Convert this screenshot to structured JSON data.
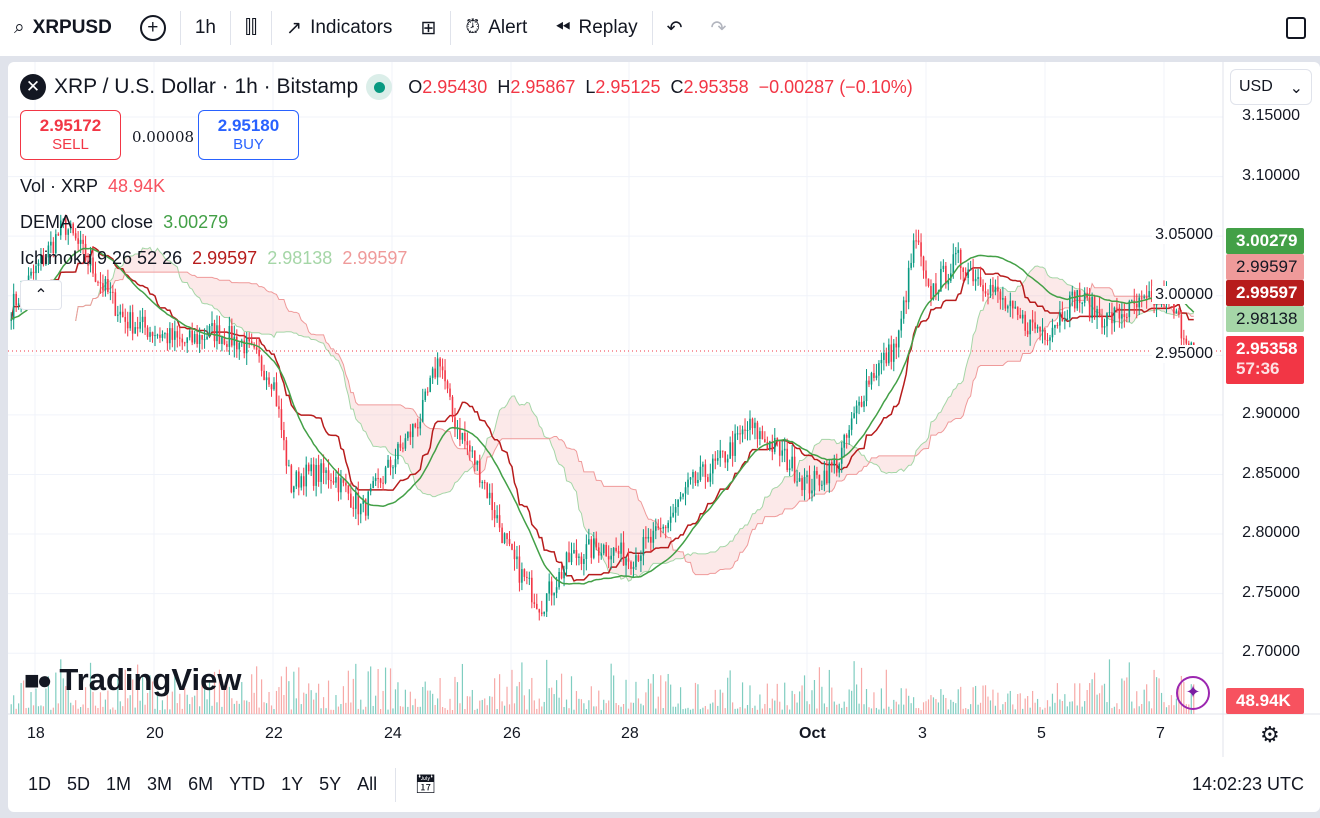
{
  "toolbar": {
    "symbol": "XRPUSD",
    "interval": "1h",
    "indicators": "Indicators",
    "alert": "Alert",
    "replay": "Replay"
  },
  "legend": {
    "title": "XRP / U.S. Dollar · 1h · Bitstamp",
    "o_label": "O",
    "o": "2.95430",
    "h_label": "H",
    "h": "2.95867",
    "l_label": "L",
    "l": "2.95125",
    "c_label": "C",
    "c": "2.95358",
    "change": "−0.00287 (−0.10%)"
  },
  "trade": {
    "sell_price": "2.95172",
    "sell_label": "SELL",
    "spread": "0.00008",
    "buy_price": "2.95180",
    "buy_label": "BUY"
  },
  "indicators": {
    "vol_label": "Vol · XRP",
    "vol_value": "48.94K",
    "dema_label": "DEMA 200 close",
    "dema_value": "3.00279",
    "ichi_label": "Ichimoku 9 26 52 26",
    "ichi_v1": "2.99597",
    "ichi_v2": "2.98138",
    "ichi_v3": "2.99597"
  },
  "currency": "USD",
  "price_axis": [
    "3.15000",
    "3.10000",
    "3.05000",
    "3.00000",
    "2.95000",
    "2.90000",
    "2.85000",
    "2.80000",
    "2.75000",
    "2.70000"
  ],
  "price_tags": {
    "dema": "3.00279",
    "span_b": "2.99597",
    "base": "2.99597",
    "span_a": "2.98138",
    "last": "2.95358",
    "countdown": "57:36",
    "volume": "48.94K"
  },
  "time_axis": [
    "18",
    "20",
    "22",
    "24",
    "26",
    "28",
    "Oct",
    "3",
    "5",
    "7"
  ],
  "ranges": [
    "1D",
    "5D",
    "1M",
    "3M",
    "6M",
    "YTD",
    "1Y",
    "5Y",
    "All"
  ],
  "clock": "14:02:23 UTC",
  "watermark": "TradingView",
  "colors": {
    "up": "#089981",
    "down": "#f23645",
    "dema": "#43a047",
    "base": "#b71c1c"
  },
  "chart_data": {
    "type": "candlestick",
    "interval": "1h",
    "ylim": [
      2.68,
      3.16
    ],
    "key_days": [
      17.6,
      18,
      18.5,
      19,
      19.5,
      20,
      20.5,
      21,
      21.5,
      22,
      22.3,
      22.5,
      23,
      23.5,
      24,
      24.5,
      24.8,
      25,
      25.5,
      26,
      26.5,
      27,
      27.5,
      28,
      28.5,
      29,
      29.5,
      30,
      30.5,
      31,
      31.5,
      32,
      32.5,
      32.8,
      33,
      33.5,
      34,
      34.5,
      35,
      35.5,
      36,
      36.5,
      37,
      37.3,
      37.5
    ],
    "key_closes": [
      2.99,
      3.02,
      3.06,
      3.02,
      2.98,
      2.97,
      2.96,
      2.97,
      2.96,
      2.93,
      2.84,
      2.85,
      2.85,
      2.82,
      2.86,
      2.9,
      2.95,
      2.9,
      2.85,
      2.78,
      2.74,
      2.78,
      2.79,
      2.78,
      2.8,
      2.84,
      2.86,
      2.89,
      2.87,
      2.84,
      2.86,
      2.93,
      2.96,
      3.05,
      3.0,
      3.03,
      3.01,
      2.98,
      2.97,
      3.0,
      2.98,
      2.99,
      3.0,
      2.97,
      2.95358
    ]
  }
}
